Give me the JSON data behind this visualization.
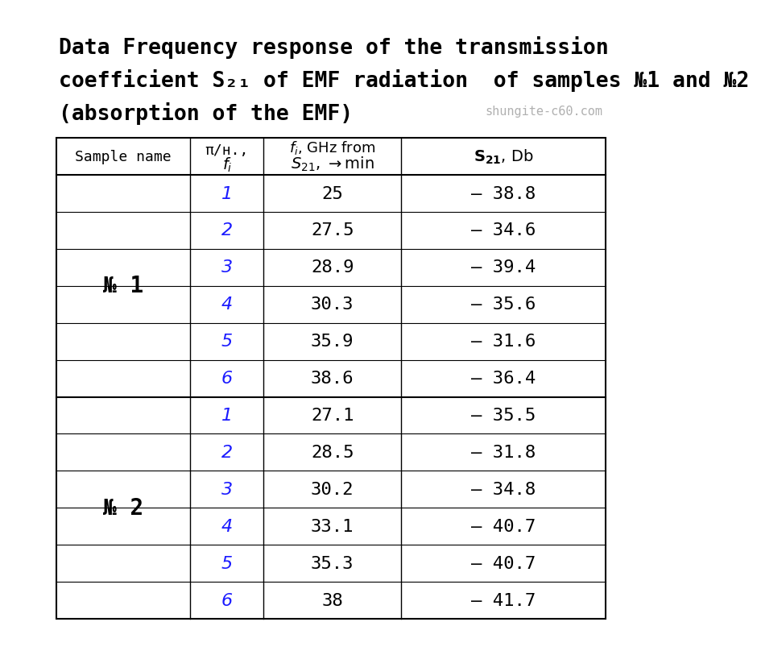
{
  "title_line1": "Data Frequency response of the transmission",
  "title_line2": "coefficient S₂₁ of EMF radiation  of samples №1 and №2",
  "title_line3": "(absorption of the EMF)",
  "watermark": "shungite-c60.com",
  "sample1_name": "№ 1",
  "sample2_name": "№ 2",
  "sample1_data": [
    [
      "1",
      "25",
      "– 38.8"
    ],
    [
      "2",
      "27.5",
      "– 34.6"
    ],
    [
      "3",
      "28.9",
      "– 39.4"
    ],
    [
      "4",
      "30.3",
      "– 35.6"
    ],
    [
      "5",
      "35.9",
      "– 31.6"
    ],
    [
      "6",
      "38.6",
      "– 36.4"
    ]
  ],
  "sample2_data": [
    [
      "1",
      "27.1",
      "– 35.5"
    ],
    [
      "2",
      "28.5",
      "– 31.8"
    ],
    [
      "3",
      "30.2",
      "– 34.8"
    ],
    [
      "4",
      "33.1",
      "– 40.7"
    ],
    [
      "5",
      "35.3",
      "– 40.7"
    ],
    [
      "6",
      "38",
      "– 41.7"
    ]
  ],
  "background_color": "#ffffff",
  "text_color": "#000000",
  "index_color": "#1a1aff",
  "table_border_color": "#000000",
  "watermark_color": "#b0b0b0",
  "title_font_size": 19,
  "header_font_size": 13,
  "data_font_size": 16,
  "sample_label_font_size": 20
}
